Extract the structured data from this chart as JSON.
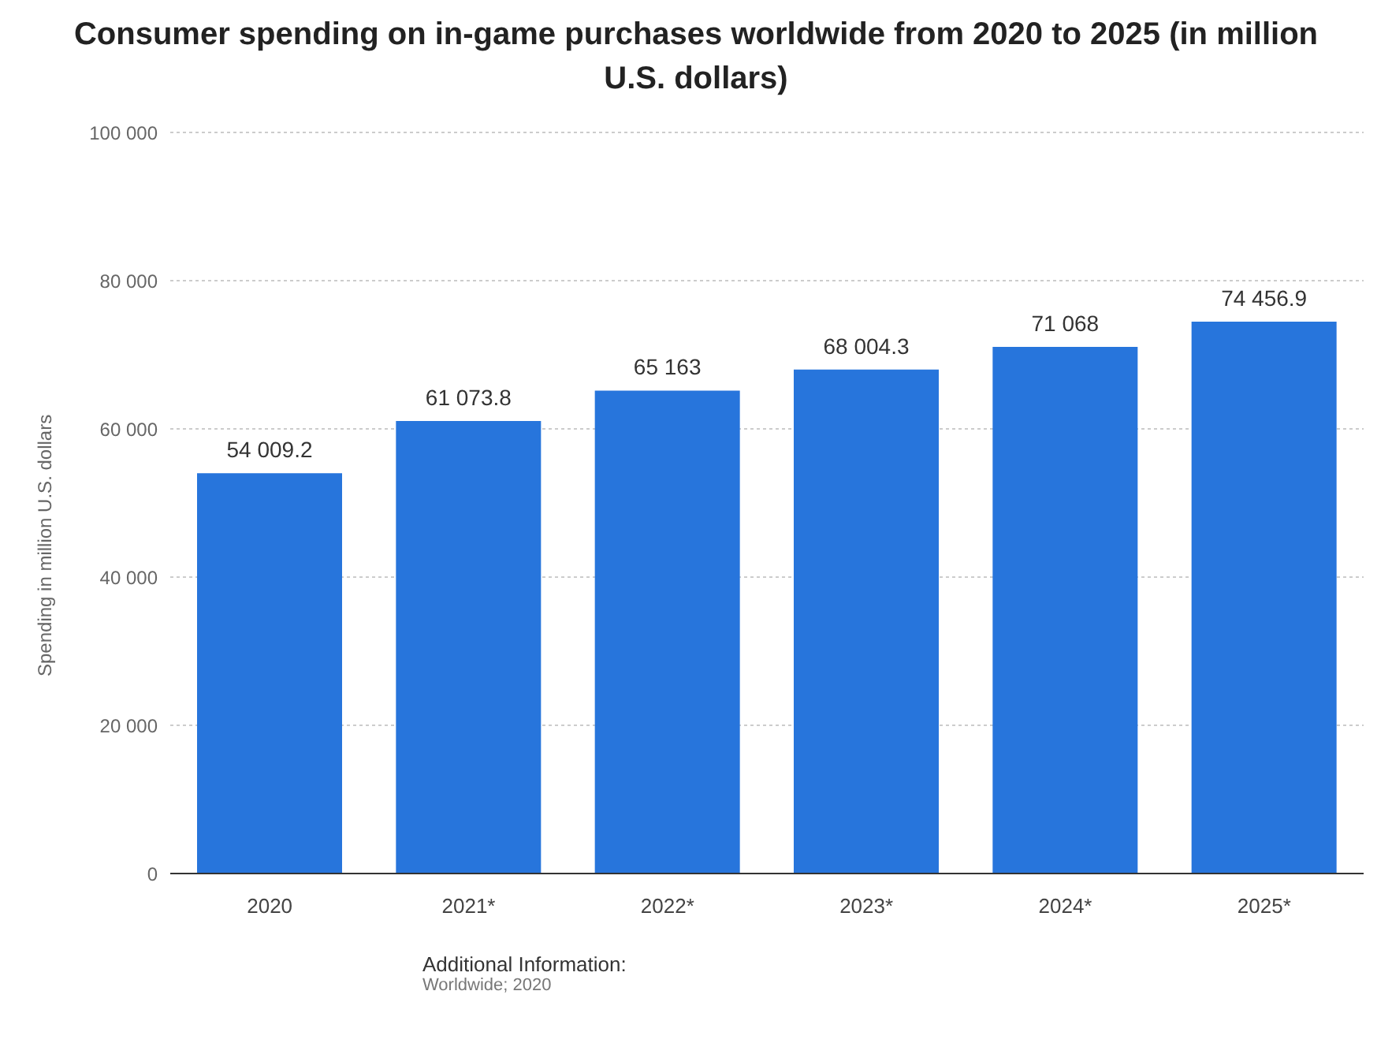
{
  "chart_data": {
    "type": "bar",
    "title": "Consumer spending on in-game purchases worldwide from 2020 to 2025 (in million U.S. dollars)",
    "ylabel": "Spending in million U.S. dollars",
    "categories": [
      "2020",
      "2021*",
      "2022*",
      "2023*",
      "2024*",
      "2025*"
    ],
    "values": [
      54009.2,
      61073.8,
      65163,
      68004.3,
      71068,
      74456.9
    ],
    "value_labels": [
      "54 009.2",
      "61 073.8",
      "65 163",
      "68 004.3",
      "71 068",
      "74 456.9"
    ],
    "color": "#2775dc",
    "ylim": [
      0,
      100000
    ],
    "yticks": [
      {
        "value": 0,
        "label": "0"
      },
      {
        "value": 20000,
        "label": "20 000"
      },
      {
        "value": 40000,
        "label": "40 000"
      },
      {
        "value": 60000,
        "label": "60 000"
      },
      {
        "value": 80000,
        "label": "80 000"
      },
      {
        "value": 100000,
        "label": "100 000"
      }
    ],
    "grid": "y",
    "annotations": [
      "Additional Information:",
      "Worldwide; 2020"
    ]
  }
}
